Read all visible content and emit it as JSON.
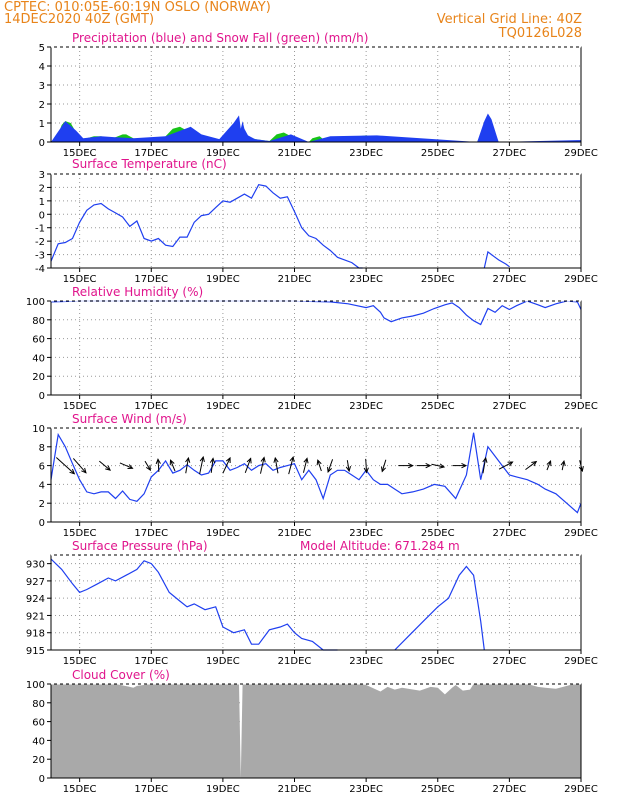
{
  "header": {
    "title": "CPTEC:   010:05E-60:19N   OSLO (NORWAY)",
    "date": "14DEC2020 40Z (GMT)",
    "grid_note": "Vertical Grid Line: 40Z",
    "code": "TQ0126L028"
  },
  "colors": {
    "header": "#e8841a",
    "title": "#e0148c",
    "line": "#1f3ff0",
    "snow": "#18c418",
    "rain": "#1f3ff0",
    "cloud": "#a9a9a9"
  },
  "x_axis": {
    "labels": [
      "15DEC",
      "17DEC",
      "19DEC",
      "21DEC",
      "23DEC",
      "25DEC",
      "27DEC",
      "29DEC"
    ],
    "label_days": [
      15,
      17,
      19,
      21,
      23,
      25,
      27,
      29
    ],
    "day_range": [
      14.2,
      29.0
    ]
  },
  "chart_data": [
    {
      "id": "precip",
      "type": "area",
      "title": "Precipitation (blue) and Snow Fall (green) (mm/h)",
      "ylim": [
        0,
        5
      ],
      "yticks": [
        0,
        1,
        2,
        3,
        4,
        5
      ],
      "series": [
        {
          "role": "snow",
          "x": [
            14.2,
            14.4,
            14.5,
            14.6,
            14.75,
            14.9,
            15.0,
            15.2,
            15.4,
            15.6,
            15.8,
            16.0,
            16.2,
            16.3,
            16.5,
            16.6,
            16.8,
            17.0,
            17.2,
            17.4,
            17.6,
            17.8,
            18.0,
            18.2,
            18.4,
            18.6,
            18.9,
            19.1,
            19.3,
            19.45,
            19.5,
            19.55,
            19.6,
            19.7,
            19.9,
            20.1,
            20.3,
            20.5,
            20.7,
            20.9,
            21.2,
            21.4,
            21.5,
            21.7,
            21.9,
            22.2,
            22.5,
            22.8,
            23.0,
            23.2,
            23.3,
            26.1,
            26.25,
            26.4,
            26.55,
            26.7,
            28.8,
            29.0
          ],
          "values": [
            0,
            0.4,
            0.9,
            1.1,
            1.0,
            0.5,
            0.1,
            0.2,
            0.3,
            0.3,
            0.15,
            0.25,
            0.4,
            0.4,
            0.2,
            0,
            0,
            0,
            0.05,
            0.3,
            0.7,
            0.8,
            0.6,
            0.3,
            0.4,
            0.15,
            0.1,
            0.5,
            0.9,
            1.2,
            0.6,
            0.9,
            0.6,
            0.3,
            0.15,
            0.1,
            0.05,
            0.4,
            0.5,
            0.3,
            0,
            0,
            0.2,
            0.3,
            0,
            0,
            0.1,
            0.3,
            0.35,
            0.25,
            0,
            0,
            0.6,
            1.4,
            0.7,
            0,
            0,
            0.1
          ]
        },
        {
          "role": "rain",
          "x": [
            14.2,
            14.6,
            14.9,
            15.1,
            15.6,
            16.0,
            16.5,
            17.4,
            18.1,
            18.4,
            18.9,
            19.3,
            19.45,
            19.5,
            19.55,
            19.6,
            19.7,
            19.9,
            20.3,
            20.9,
            21.4,
            22.0,
            23.3,
            26.1,
            26.3,
            26.4,
            26.5,
            26.7,
            28.9,
            29.0
          ],
          "values": [
            0,
            1.1,
            0.6,
            0.2,
            0.3,
            0.25,
            0.2,
            0.3,
            0.8,
            0.4,
            0.15,
            1.0,
            1.4,
            0.7,
            1.1,
            0.7,
            0.35,
            0.15,
            0.05,
            0.4,
            0,
            0.3,
            0.35,
            0,
            1.1,
            1.5,
            1.2,
            0,
            0.1,
            0.1
          ]
        }
      ]
    },
    {
      "id": "temp",
      "type": "line",
      "title": "Surface Temperature (nC)",
      "ylim": [
        -4,
        3
      ],
      "yticks": [
        -4,
        -3,
        -2,
        -1,
        0,
        1,
        2,
        3
      ],
      "series": [
        {
          "x": [
            14.2,
            14.4,
            14.6,
            14.8,
            15.0,
            15.2,
            15.4,
            15.6,
            15.8,
            16.0,
            16.2,
            16.4,
            16.6,
            16.8,
            17.0,
            17.2,
            17.4,
            17.6,
            17.8,
            18.0,
            18.2,
            18.4,
            18.6,
            18.8,
            19.0,
            19.2,
            19.4,
            19.6,
            19.8,
            20.0,
            20.2,
            20.4,
            20.6,
            20.8,
            21.0,
            21.2,
            21.4,
            21.6,
            21.8,
            22.0,
            22.2,
            22.4,
            22.6,
            22.8,
            22.9
          ],
          "values": [
            -3.5,
            -2.2,
            -2.1,
            -1.8,
            -0.6,
            0.3,
            0.7,
            0.8,
            0.4,
            0.1,
            -0.2,
            -0.9,
            -0.5,
            -1.8,
            -2.0,
            -1.8,
            -2.3,
            -2.4,
            -1.7,
            -1.7,
            -0.6,
            -0.1,
            0.0,
            0.5,
            1.0,
            0.9,
            1.2,
            1.5,
            1.2,
            2.2,
            2.1,
            1.6,
            1.2,
            1.3,
            0.2,
            -1.0,
            -1.6,
            -1.8,
            -2.3,
            -2.7,
            -3.2,
            -3.4,
            -3.6,
            -4.0,
            -4.0
          ]
        },
        {
          "x": [
            26.3,
            26.4,
            26.5,
            26.6,
            26.7,
            26.9,
            27.0
          ],
          "values": [
            -4.0,
            -2.8,
            -3.0,
            -3.2,
            -3.4,
            -3.7,
            -3.9
          ]
        }
      ]
    },
    {
      "id": "rh",
      "type": "line",
      "title": "Relative Humidity (%)",
      "ylim": [
        0,
        100
      ],
      "yticks": [
        0,
        20,
        40,
        60,
        80,
        100
      ],
      "series": [
        {
          "x": [
            14.2,
            15.0,
            16.0,
            17.0,
            18.0,
            19.0,
            20.0,
            21.0,
            22.0,
            22.5,
            23.0,
            23.2,
            23.4,
            23.5,
            23.7,
            24.0,
            24.3,
            24.6,
            24.9,
            25.2,
            25.4,
            25.6,
            25.8,
            26.0,
            26.2,
            26.4,
            26.6,
            26.8,
            27.0,
            27.2,
            27.5,
            27.8,
            28.0,
            28.3,
            28.6,
            28.9,
            29.0
          ],
          "values": [
            99,
            100,
            100,
            100,
            100,
            100,
            100,
            100,
            99,
            97,
            93,
            95,
            88,
            82,
            78,
            82,
            84,
            87,
            92,
            96,
            98,
            93,
            85,
            79,
            75,
            92,
            88,
            95,
            91,
            95,
            100,
            96,
            93,
            97,
            100,
            99,
            91
          ]
        }
      ]
    },
    {
      "id": "wind",
      "type": "line",
      "title": "Surface Wind (m/s)",
      "ylim": [
        0,
        10
      ],
      "yticks": [
        0,
        2,
        4,
        6,
        8,
        10
      ],
      "series": [
        {
          "x": [
            14.2,
            14.4,
            14.6,
            14.8,
            15.0,
            15.2,
            15.4,
            15.6,
            15.8,
            16.0,
            16.2,
            16.4,
            16.6,
            16.8,
            17.0,
            17.2,
            17.4,
            17.6,
            17.8,
            18.0,
            18.2,
            18.4,
            18.6,
            18.8,
            19.0,
            19.2,
            19.4,
            19.6,
            19.8,
            20.0,
            20.2,
            20.4,
            20.6,
            20.8,
            21.0,
            21.2,
            21.4,
            21.6,
            21.8,
            22.0,
            22.2,
            22.4,
            22.6,
            22.8,
            23.0,
            23.2,
            23.4,
            23.6,
            23.8,
            24.0,
            24.3,
            24.6,
            24.9,
            25.2,
            25.5,
            25.8,
            26.0,
            26.2,
            26.4,
            26.6,
            26.8,
            27.0,
            27.2,
            27.5,
            27.8,
            28.0,
            28.3,
            28.6,
            28.9,
            29.0
          ],
          "values": [
            4.5,
            9.3,
            8.0,
            6.2,
            4.5,
            3.2,
            3.0,
            3.2,
            3.2,
            2.5,
            3.3,
            2.4,
            2.2,
            3.0,
            4.8,
            5.5,
            6.5,
            5.2,
            5.5,
            6.1,
            5.5,
            5.0,
            5.2,
            6.5,
            6.5,
            5.5,
            5.8,
            6.2,
            5.5,
            6.0,
            6.2,
            5.5,
            5.8,
            6.0,
            6.2,
            4.5,
            5.5,
            4.5,
            2.5,
            5.0,
            5.5,
            5.5,
            5.0,
            4.5,
            5.5,
            4.5,
            4.0,
            4.0,
            3.5,
            3.0,
            3.2,
            3.5,
            4.0,
            3.8,
            2.5,
            5.0,
            9.5,
            4.5,
            8.0,
            7.0,
            6.0,
            5.0,
            4.8,
            4.5,
            4.0,
            3.5,
            3.0,
            2.0,
            1.0,
            2.0
          ]
        }
      ],
      "barbs": [
        {
          "x": 14.6,
          "u": 2,
          "v": -1.8
        },
        {
          "x": 15.0,
          "u": 1.4,
          "v": -1.6
        },
        {
          "x": 15.7,
          "u": 1.2,
          "v": -1.0
        },
        {
          "x": 16.3,
          "u": 1.4,
          "v": -0.6
        },
        {
          "x": 16.9,
          "u": 0.6,
          "v": -1.0
        },
        {
          "x": 17.2,
          "u": -0.1,
          "v": 1.4
        },
        {
          "x": 17.6,
          "u": -0.5,
          "v": 1.2
        },
        {
          "x": 18.0,
          "u": 0.3,
          "v": 1.7
        },
        {
          "x": 18.4,
          "u": 0.4,
          "v": 1.9
        },
        {
          "x": 18.7,
          "u": 0.2,
          "v": 1.6
        },
        {
          "x": 19.1,
          "u": 0.8,
          "v": 1.7
        },
        {
          "x": 19.7,
          "u": 0.6,
          "v": 1.6
        },
        {
          "x": 20.1,
          "u": 0.4,
          "v": 1.8
        },
        {
          "x": 20.5,
          "u": -0.3,
          "v": 1.7
        },
        {
          "x": 20.9,
          "u": 0.5,
          "v": 1.9
        },
        {
          "x": 21.3,
          "u": 0.4,
          "v": 1.6
        },
        {
          "x": 21.7,
          "u": -0.4,
          "v": 1.2
        },
        {
          "x": 22.0,
          "u": -0.5,
          "v": -1.4
        },
        {
          "x": 22.5,
          "u": 0.2,
          "v": -1.2
        },
        {
          "x": 23.0,
          "u": 0.1,
          "v": -1.5
        },
        {
          "x": 23.5,
          "u": -0.4,
          "v": -1.3
        },
        {
          "x": 24.1,
          "u": 1.6,
          "v": 0.0
        },
        {
          "x": 24.6,
          "u": 1.5,
          "v": 0.0
        },
        {
          "x": 25.0,
          "u": 1.4,
          "v": -0.3
        },
        {
          "x": 25.6,
          "u": 1.5,
          "v": 0.0
        },
        {
          "x": 26.3,
          "u": 0.3,
          "v": 1.7
        },
        {
          "x": 26.9,
          "u": 1.5,
          "v": 0.8
        },
        {
          "x": 27.6,
          "u": 1.2,
          "v": 0.9
        },
        {
          "x": 28.1,
          "u": 0.4,
          "v": 1.0
        },
        {
          "x": 28.5,
          "u": 0.2,
          "v": 1.0
        },
        {
          "x": 29.0,
          "u": 0.3,
          "v": -1.2
        }
      ]
    },
    {
      "id": "pressure",
      "type": "line",
      "title": "Surface Pressure (hPa)",
      "subtitle": "Model Altitude: 671.284 m",
      "ylim": [
        915,
        931.5
      ],
      "yticks": [
        915,
        918,
        921,
        924,
        927,
        930
      ],
      "series": [
        {
          "x": [
            14.2,
            14.5,
            14.8,
            15.0,
            15.2,
            15.5,
            15.8,
            16.0,
            16.3,
            16.6,
            16.8,
            17.0,
            17.2,
            17.5,
            17.8,
            18.0,
            18.2,
            18.5,
            18.8,
            19.0,
            19.3,
            19.6,
            19.8,
            20.0,
            20.3,
            20.6,
            20.8,
            21.0,
            21.2,
            21.5,
            21.8,
            22.0,
            22.2
          ],
          "values": [
            930.8,
            929,
            926.5,
            925,
            925.5,
            926.5,
            927.5,
            927,
            928,
            929,
            930.5,
            930,
            928.5,
            925,
            923.5,
            922.5,
            923,
            922,
            922.5,
            919,
            918,
            918.5,
            916,
            916,
            918.5,
            919,
            919.5,
            918,
            917,
            916.5,
            915,
            914.5,
            914.5
          ]
        },
        {
          "x": [
            23.8,
            24.2,
            24.6,
            25.0,
            25.3,
            25.6,
            25.8,
            26.0,
            26.2,
            26.3
          ],
          "values": [
            915,
            917.5,
            920,
            922.5,
            924,
            928,
            929.5,
            928,
            920,
            915
          ]
        }
      ]
    },
    {
      "id": "cloud",
      "type": "area",
      "title": "Cloud Cover (%)",
      "ylim": [
        0,
        100
      ],
      "yticks": [
        0,
        20,
        40,
        60,
        80,
        100
      ],
      "series": [
        {
          "x": [
            14.2,
            16.0,
            16.4,
            16.5,
            16.6,
            17.0,
            17.5,
            18.0,
            19.0,
            19.45,
            19.5,
            19.55,
            19.6,
            21.0,
            22.0,
            22.5,
            22.8,
            23.0,
            23.4,
            23.6,
            23.8,
            24.0,
            24.5,
            24.8,
            25.0,
            25.2,
            25.4,
            25.5,
            25.7,
            25.9,
            26.0,
            27.0,
            27.5,
            27.8,
            28.0,
            28.3,
            28.5,
            28.8,
            29.0
          ],
          "values": [
            100,
            100,
            97,
            96,
            98,
            100,
            100,
            100,
            100,
            100,
            0,
            100,
            100,
            100,
            100,
            100,
            100,
            99,
            92,
            97,
            94,
            96,
            93,
            97,
            96,
            89,
            96,
            99,
            93,
            94,
            100,
            100,
            100,
            97,
            96,
            95,
            97,
            100,
            100
          ]
        }
      ]
    }
  ]
}
